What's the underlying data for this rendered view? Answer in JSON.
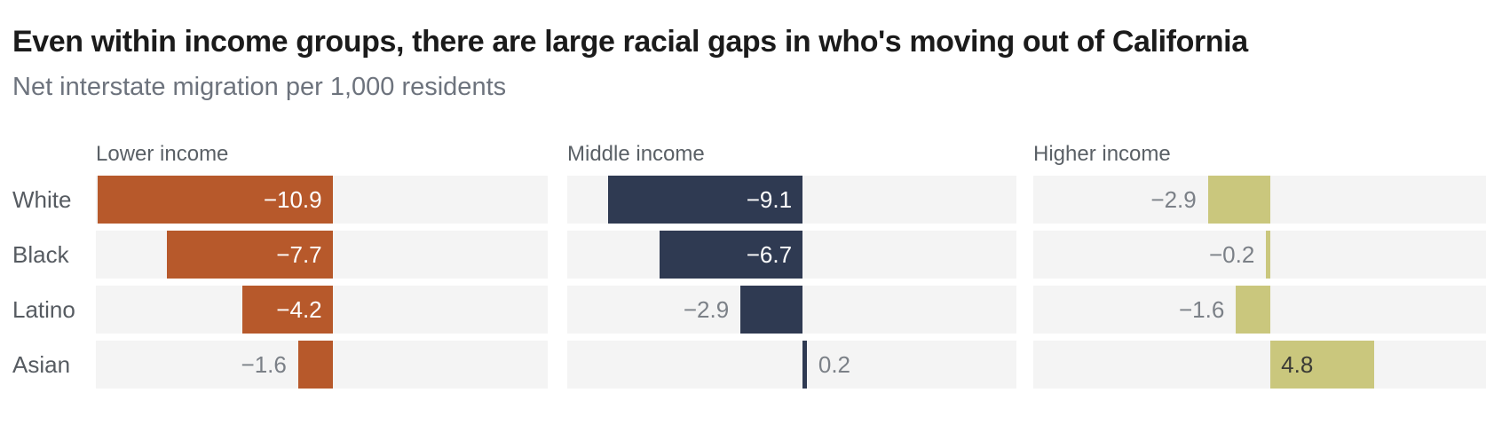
{
  "chart_data": {
    "type": "bar",
    "orientation": "horizontal",
    "title": "Even within income groups, there are large racial gaps in who's moving out of California",
    "subtitle": "Net interstate migration per 1,000 residents",
    "categories": [
      "White",
      "Black",
      "Latino",
      "Asian"
    ],
    "panels": [
      {
        "name": "Lower income",
        "color": "#b7592b",
        "values": [
          -10.9,
          -7.7,
          -4.2,
          -1.6
        ],
        "labels": [
          "−10.9",
          "−7.7",
          "−4.2",
          "−1.6"
        ],
        "label_inside": [
          true,
          true,
          true,
          false
        ]
      },
      {
        "name": "Middle income",
        "color": "#2f3a52",
        "values": [
          -9.1,
          -6.7,
          -2.9,
          0.2
        ],
        "labels": [
          "−9.1",
          "−6.7",
          "−2.9",
          "0.2"
        ],
        "label_inside": [
          true,
          true,
          false,
          false
        ]
      },
      {
        "name": "Higher income",
        "color": "#cac77d",
        "values": [
          -2.9,
          -0.2,
          -1.6,
          4.8
        ],
        "labels": [
          "−2.9",
          "−0.2",
          "−1.6",
          "4.8"
        ],
        "label_inside": [
          false,
          false,
          false,
          true
        ]
      }
    ],
    "xlim": [
      -11,
      10
    ],
    "gridlines": false,
    "legend": "none",
    "row_background_color": "#f4f4f4",
    "value_label_colors": {
      "inside_negative": "#ffffff",
      "inside_positive": "#3a3a35",
      "outside": "#7b8087"
    },
    "text_colors": {
      "title": "#1b1b1b",
      "subtitle": "#6d737d",
      "panel_header": "#5a6066",
      "row_label": "#565b61"
    }
  }
}
